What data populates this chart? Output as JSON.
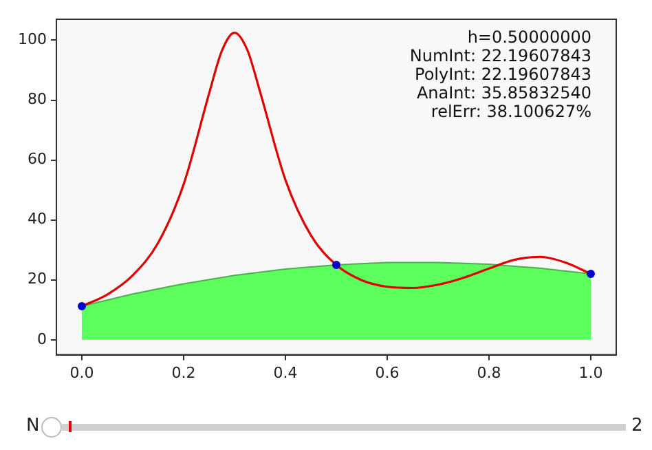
{
  "chart_data": {
    "type": "line",
    "series": [
      {
        "type": "area",
        "color": "#5dff5d",
        "x": [
          0,
          0.1,
          0.2,
          0.3,
          0.4,
          0.5,
          0.6,
          0.7,
          0.8,
          0.9,
          1.0
        ],
        "values": [
          11.2,
          15.3,
          18.7,
          21.5,
          23.6,
          25.0,
          25.8,
          25.8,
          25.2,
          23.9,
          22.0
        ]
      },
      {
        "color": "#e00000",
        "x": [
          0,
          0.05,
          0.1,
          0.15,
          0.2,
          0.25,
          0.275,
          0.3,
          0.325,
          0.35,
          0.4,
          0.45,
          0.5,
          0.55,
          0.6,
          0.65,
          0.7,
          0.75,
          0.8,
          0.85,
          0.9,
          0.95,
          1.0
        ],
        "values": [
          11.2,
          15.1,
          21.5,
          32.4,
          51.9,
          82.2,
          96.4,
          102.5,
          96.8,
          82.9,
          53.4,
          34.9,
          25.0,
          19.9,
          17.7,
          17.3,
          18.4,
          20.7,
          23.8,
          26.7,
          27.7,
          25.8,
          22.0
        ]
      },
      {
        "type": "scatter",
        "marker": "circle",
        "color": "#0000cc",
        "x": [
          0,
          0.5,
          1.0
        ],
        "values": [
          11.2,
          25.0,
          22.0
        ]
      }
    ],
    "xlim": [
      -0.05,
      1.05
    ],
    "xticks": [
      {
        "value": 0,
        "label": "0.0"
      },
      {
        "value": 0.2,
        "label": "0.2"
      },
      {
        "value": 0.4,
        "label": "0.4"
      },
      {
        "value": 0.6,
        "label": "0.6"
      },
      {
        "value": 0.8,
        "label": "0.8"
      },
      {
        "value": 1,
        "label": "1.0"
      }
    ],
    "ylim": [
      -5,
      107
    ],
    "yticks": [
      0,
      20,
      40,
      60,
      80,
      100
    ],
    "grid": false,
    "legend": false,
    "line_style": "solid",
    "annotations": [
      "h=0.50000000",
      "NumInt: 22.19607843",
      "PolyInt: 22.19607843",
      "AnaInt: 35.85832540",
      "relErr: 38.100627%",
      "N",
      "2"
    ]
  }
}
